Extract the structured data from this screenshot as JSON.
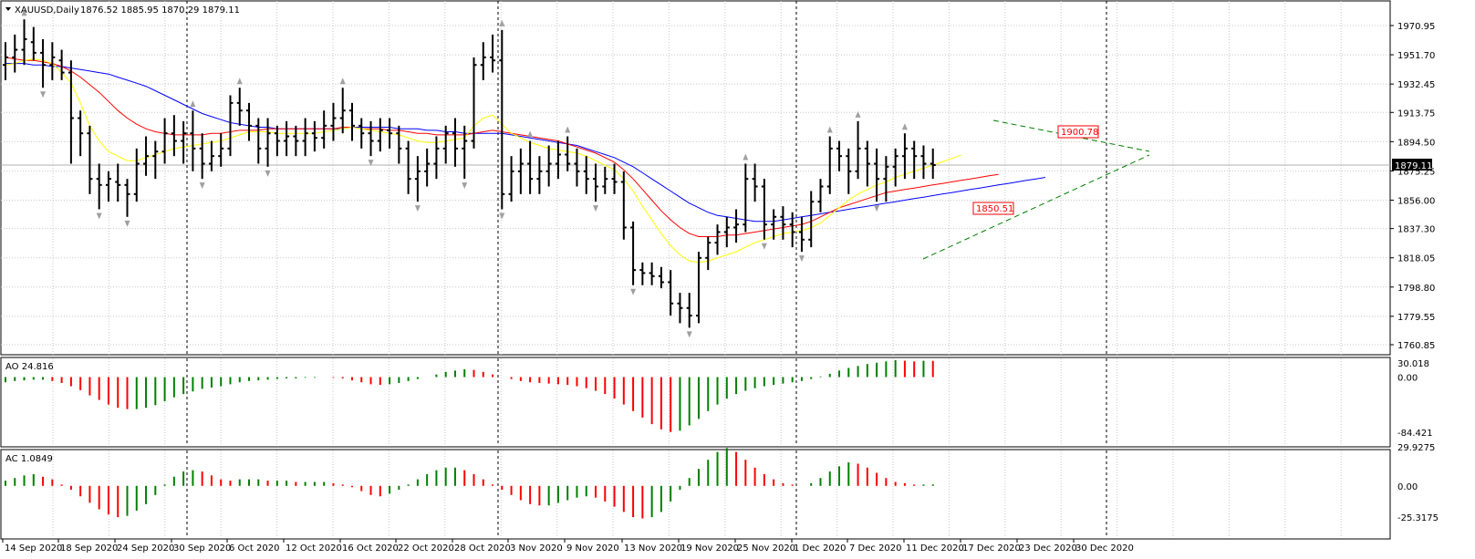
{
  "main": {
    "title": "XAUUSD,Daily",
    "ohlc": "1876.52 1885.95 1870.29 1879.11",
    "last_price": "1879.11",
    "ticks": [
      "1970.95",
      "1951.70",
      "1932.45",
      "1913.75",
      "1894.50",
      "1875.25",
      "1856.00",
      "1837.30",
      "1818.05",
      "1798.80",
      "1779.55",
      "1760.85"
    ],
    "tag_high": "1900.78",
    "tag_low": "1850.51"
  },
  "ao": {
    "title": "AO 24.816",
    "ticks": [
      "30.018",
      "0.00",
      "-84.421"
    ]
  },
  "ac": {
    "title": "AC 1.0849",
    "ticks": [
      "29.9275",
      "0.00",
      "-25.3175"
    ]
  },
  "dates": [
    "14 Sep 2020",
    "18 Sep 2020",
    "24 Sep 2020",
    "30 Sep 2020",
    "6 Oct 2020",
    "12 Oct 2020",
    "16 Oct 2020",
    "22 Oct 2020",
    "28 Oct 2020",
    "3 Nov 2020",
    "9 Nov 2020",
    "13 Nov 2020",
    "19 Nov 2020",
    "25 Nov 2020",
    "1 Dec 2020",
    "7 Dec 2020",
    "11 Dec 2020",
    "17 Dec 2020",
    "23 Dec 2020",
    "30 Dec 2020"
  ],
  "colors": {
    "up": "#008000",
    "down": "#ff0000",
    "ma_fast": "#ffff00",
    "ma_mid": "#ff0000",
    "ma_slow": "#0000ff",
    "trend": "#008000",
    "bars": "#000000"
  },
  "chart_data": {
    "type": "ohlc",
    "symbol": "XAUUSD",
    "timeframe": "Daily",
    "ylim": [
      1760.85,
      1980
    ],
    "bars": [
      [
        1945,
        1960,
        1935,
        1950
      ],
      [
        1950,
        1965,
        1940,
        1955
      ],
      [
        1955,
        1975,
        1945,
        1962
      ],
      [
        1960,
        1970,
        1948,
        1953
      ],
      [
        1953,
        1962,
        1930,
        1945
      ],
      [
        1945,
        1960,
        1935,
        1950
      ],
      [
        1948,
        1955,
        1935,
        1940
      ],
      [
        1940,
        1948,
        1880,
        1910
      ],
      [
        1910,
        1915,
        1885,
        1900
      ],
      [
        1900,
        1905,
        1860,
        1870
      ],
      [
        1870,
        1880,
        1850,
        1866
      ],
      [
        1866,
        1875,
        1855,
        1870
      ],
      [
        1868,
        1880,
        1855,
        1866
      ],
      [
        1866,
        1870,
        1845,
        1860
      ],
      [
        1860,
        1890,
        1855,
        1880
      ],
      [
        1880,
        1898,
        1872,
        1885
      ],
      [
        1885,
        1895,
        1870,
        1888
      ],
      [
        1888,
        1910,
        1880,
        1900
      ],
      [
        1900,
        1912,
        1885,
        1895
      ],
      [
        1895,
        1908,
        1880,
        1900
      ],
      [
        1900,
        1915,
        1875,
        1890
      ],
      [
        1890,
        1900,
        1870,
        1880
      ],
      [
        1880,
        1895,
        1875,
        1885
      ],
      [
        1885,
        1900,
        1878,
        1890
      ],
      [
        1890,
        1925,
        1885,
        1920
      ],
      [
        1920,
        1930,
        1905,
        1915
      ],
      [
        1915,
        1920,
        1895,
        1905
      ],
      [
        1905,
        1910,
        1880,
        1890
      ],
      [
        1890,
        1910,
        1878,
        1900
      ],
      [
        1900,
        1905,
        1885,
        1895
      ],
      [
        1895,
        1908,
        1885,
        1898
      ],
      [
        1898,
        1905,
        1885,
        1895
      ],
      [
        1895,
        1910,
        1885,
        1900
      ],
      [
        1900,
        1908,
        1888,
        1897
      ],
      [
        1897,
        1915,
        1890,
        1905
      ],
      [
        1905,
        1920,
        1895,
        1910
      ],
      [
        1910,
        1930,
        1900,
        1915
      ],
      [
        1915,
        1920,
        1895,
        1905
      ],
      [
        1905,
        1910,
        1890,
        1900
      ],
      [
        1900,
        1908,
        1885,
        1895
      ],
      [
        1895,
        1910,
        1888,
        1902
      ],
      [
        1902,
        1910,
        1890,
        1900
      ],
      [
        1900,
        1905,
        1880,
        1890
      ],
      [
        1890,
        1895,
        1860,
        1870
      ],
      [
        1870,
        1885,
        1855,
        1875
      ],
      [
        1875,
        1890,
        1865,
        1880
      ],
      [
        1880,
        1898,
        1870,
        1890
      ],
      [
        1890,
        1905,
        1880,
        1900
      ],
      [
        1900,
        1910,
        1878,
        1890
      ],
      [
        1890,
        1905,
        1870,
        1895
      ],
      [
        1895,
        1950,
        1890,
        1945
      ],
      [
        1945,
        1960,
        1935,
        1950
      ],
      [
        1950,
        1965,
        1940,
        1948
      ],
      [
        1948,
        1968,
        1850,
        1860
      ],
      [
        1860,
        1885,
        1855,
        1875
      ],
      [
        1875,
        1890,
        1860,
        1880
      ],
      [
        1880,
        1895,
        1860,
        1870
      ],
      [
        1870,
        1885,
        1860,
        1875
      ],
      [
        1875,
        1892,
        1865,
        1880
      ],
      [
        1880,
        1895,
        1870,
        1886
      ],
      [
        1886,
        1898,
        1875,
        1880
      ],
      [
        1880,
        1890,
        1865,
        1875
      ],
      [
        1875,
        1885,
        1860,
        1870
      ],
      [
        1870,
        1880,
        1855,
        1865
      ],
      [
        1865,
        1878,
        1860,
        1870
      ],
      [
        1870,
        1880,
        1860,
        1868
      ],
      [
        1868,
        1875,
        1830,
        1838
      ],
      [
        1838,
        1842,
        1800,
        1810
      ],
      [
        1810,
        1815,
        1800,
        1808
      ],
      [
        1808,
        1815,
        1800,
        1806
      ],
      [
        1806,
        1812,
        1798,
        1802
      ],
      [
        1802,
        1810,
        1780,
        1788
      ],
      [
        1788,
        1795,
        1775,
        1785
      ],
      [
        1785,
        1795,
        1772,
        1780
      ],
      [
        1780,
        1822,
        1775,
        1818
      ],
      [
        1818,
        1832,
        1810,
        1828
      ],
      [
        1828,
        1840,
        1820,
        1835
      ],
      [
        1835,
        1845,
        1825,
        1838
      ],
      [
        1838,
        1850,
        1828,
        1840
      ],
      [
        1840,
        1880,
        1835,
        1870
      ],
      [
        1870,
        1880,
        1855,
        1865
      ],
      [
        1865,
        1870,
        1830,
        1840
      ],
      [
        1840,
        1850,
        1830,
        1845
      ],
      [
        1845,
        1852,
        1830,
        1840
      ],
      [
        1840,
        1848,
        1825,
        1835
      ],
      [
        1835,
        1845,
        1822,
        1830
      ],
      [
        1830,
        1862,
        1825,
        1855
      ],
      [
        1855,
        1870,
        1848,
        1865
      ],
      [
        1865,
        1898,
        1860,
        1890
      ],
      [
        1890,
        1895,
        1875,
        1885
      ],
      [
        1885,
        1890,
        1860,
        1875
      ],
      [
        1875,
        1908,
        1870,
        1890
      ],
      [
        1890,
        1895,
        1865,
        1880
      ],
      [
        1880,
        1890,
        1855,
        1870
      ],
      [
        1870,
        1885,
        1855,
        1878
      ],
      [
        1878,
        1890,
        1865,
        1885
      ],
      [
        1885,
        1900,
        1870,
        1890
      ],
      [
        1890,
        1895,
        1870,
        1885
      ],
      [
        1885,
        1892,
        1870,
        1880
      ],
      [
        1880,
        1890,
        1870,
        1879.11
      ]
    ],
    "ma_fast": [
      1945,
      1946,
      1948,
      1949,
      1948,
      1946,
      1940,
      1933,
      1920,
      1905,
      1895,
      1888,
      1885,
      1882,
      1882,
      1884,
      1886,
      1888,
      1890,
      1891,
      1892,
      1893,
      1894,
      1895,
      1897,
      1899,
      1901,
      1901,
      1901,
      1900,
      1900,
      1900,
      1900,
      1900,
      1901,
      1902,
      1903,
      1904,
      1903,
      1902,
      1901,
      1900,
      1899,
      1897,
      1895,
      1894,
      1894,
      1895,
      1896,
      1897,
      1905,
      1910,
      1912,
      1906,
      1900,
      1897,
      1894,
      1892,
      1890,
      1889,
      1888,
      1887,
      1885,
      1882,
      1879,
      1876,
      1870,
      1862,
      1852,
      1843,
      1834,
      1826,
      1820,
      1816,
      1815,
      1816,
      1818,
      1820,
      1822,
      1825,
      1828,
      1830,
      1832,
      1834,
      1835,
      1836,
      1838,
      1841,
      1846,
      1851,
      1856,
      1860,
      1863,
      1866,
      1868,
      1871,
      1873,
      1875,
      1877,
      1879
    ],
    "ma_mid": [
      1950,
      1949,
      1948,
      1948,
      1947,
      1946,
      1944,
      1941,
      1937,
      1932,
      1927,
      1921,
      1915,
      1910,
      1906,
      1903,
      1901,
      1900,
      1899,
      1899,
      1899,
      1899,
      1900,
      1900,
      1901,
      1902,
      1902,
      1902,
      1903,
      1903,
      1903,
      1903,
      1903,
      1903,
      1903,
      1903,
      1904,
      1904,
      1903,
      1903,
      1903,
      1902,
      1902,
      1901,
      1900,
      1900,
      1899,
      1899,
      1899,
      1899,
      1900,
      1901,
      1902,
      1901,
      1900,
      1899,
      1898,
      1897,
      1896,
      1895,
      1893,
      1891,
      1889,
      1887,
      1884,
      1881,
      1876,
      1870,
      1863,
      1856,
      1849,
      1843,
      1838,
      1834,
      1832,
      1832,
      1832,
      1833,
      1833,
      1834,
      1835,
      1836,
      1837,
      1838,
      1839,
      1840,
      1842,
      1845,
      1848,
      1851,
      1853,
      1855,
      1857,
      1859,
      1861,
      1862,
      1863,
      1864,
      1865,
      1866
    ],
    "ma_slow": [
      1946,
      1946,
      1946,
      1945,
      1945,
      1944,
      1944,
      1943,
      1942,
      1941,
      1940,
      1939,
      1937,
      1935,
      1933,
      1931,
      1928,
      1925,
      1922,
      1919,
      1916,
      1913,
      1911,
      1909,
      1907,
      1906,
      1905,
      1904,
      1904,
      1903,
      1903,
      1903,
      1903,
      1903,
      1903,
      1903,
      1903,
      1904,
      1904,
      1904,
      1904,
      1904,
      1903,
      1903,
      1903,
      1902,
      1902,
      1901,
      1901,
      1900,
      1900,
      1900,
      1900,
      1900,
      1899,
      1898,
      1897,
      1896,
      1895,
      1894,
      1893,
      1892,
      1890,
      1888,
      1886,
      1884,
      1881,
      1878,
      1874,
      1870,
      1866,
      1862,
      1858,
      1854,
      1851,
      1848,
      1846,
      1845,
      1844,
      1843,
      1842,
      1842,
      1842,
      1843,
      1844,
      1845,
      1846,
      1847,
      1848,
      1849,
      1850,
      1851,
      1852,
      1853,
      1854,
      1855,
      1856,
      1857,
      1858,
      1859
    ],
    "ao": {
      "ylim": [
        -84.421,
        30.018
      ],
      "values": [
        -8,
        -6,
        -5,
        -4,
        -4,
        -6,
        -9,
        -14,
        -20,
        -28,
        -35,
        -42,
        -47,
        -49,
        -49,
        -47,
        -43,
        -37,
        -31,
        -26,
        -22,
        -18,
        -16,
        -14,
        -11,
        -8,
        -6,
        -5,
        -4,
        -3,
        -2,
        -2,
        -1,
        -1,
        0,
        -1,
        -2,
        -5,
        -8,
        -11,
        -12,
        -11,
        -9,
        -6,
        -3,
        0,
        4,
        8,
        10,
        12,
        11,
        8,
        4,
        0,
        -3,
        -6,
        -8,
        -9,
        -10,
        -11,
        -12,
        -14,
        -17,
        -21,
        -26,
        -33,
        -42,
        -52,
        -62,
        -72,
        -80,
        -84,
        -82,
        -74,
        -64,
        -52,
        -42,
        -33,
        -26,
        -21,
        -17,
        -14,
        -12,
        -10,
        -8,
        -6,
        -3,
        1,
        5,
        10,
        14,
        17,
        20,
        22,
        24,
        26,
        25,
        24,
        25,
        24.816
      ]
    },
    "ac": {
      "ylim": [
        -25.3175,
        29.9275
      ],
      "values": [
        4,
        6,
        8,
        9,
        7,
        5,
        1,
        -3,
        -8,
        -13,
        -18,
        -22,
        -24,
        -23,
        -19,
        -14,
        -7,
        1,
        7,
        11,
        12,
        11,
        8,
        5,
        4,
        5,
        5,
        5,
        4,
        4,
        4,
        3,
        3,
        3,
        3,
        2,
        1,
        -1,
        -4,
        -7,
        -8,
        -6,
        -3,
        1,
        5,
        9,
        12,
        14,
        14,
        12,
        9,
        5,
        1,
        -3,
        -7,
        -11,
        -14,
        -15,
        -15,
        -13,
        -11,
        -9,
        -8,
        -9,
        -12,
        -16,
        -20,
        -24,
        -25,
        -24,
        -20,
        -12,
        -3,
        6,
        13,
        20,
        26,
        29,
        26,
        20,
        14,
        9,
        5,
        2,
        1,
        0,
        2,
        6,
        11,
        15,
        18,
        17,
        14,
        10,
        6,
        3,
        2,
        1,
        1,
        1.0849
      ]
    }
  }
}
